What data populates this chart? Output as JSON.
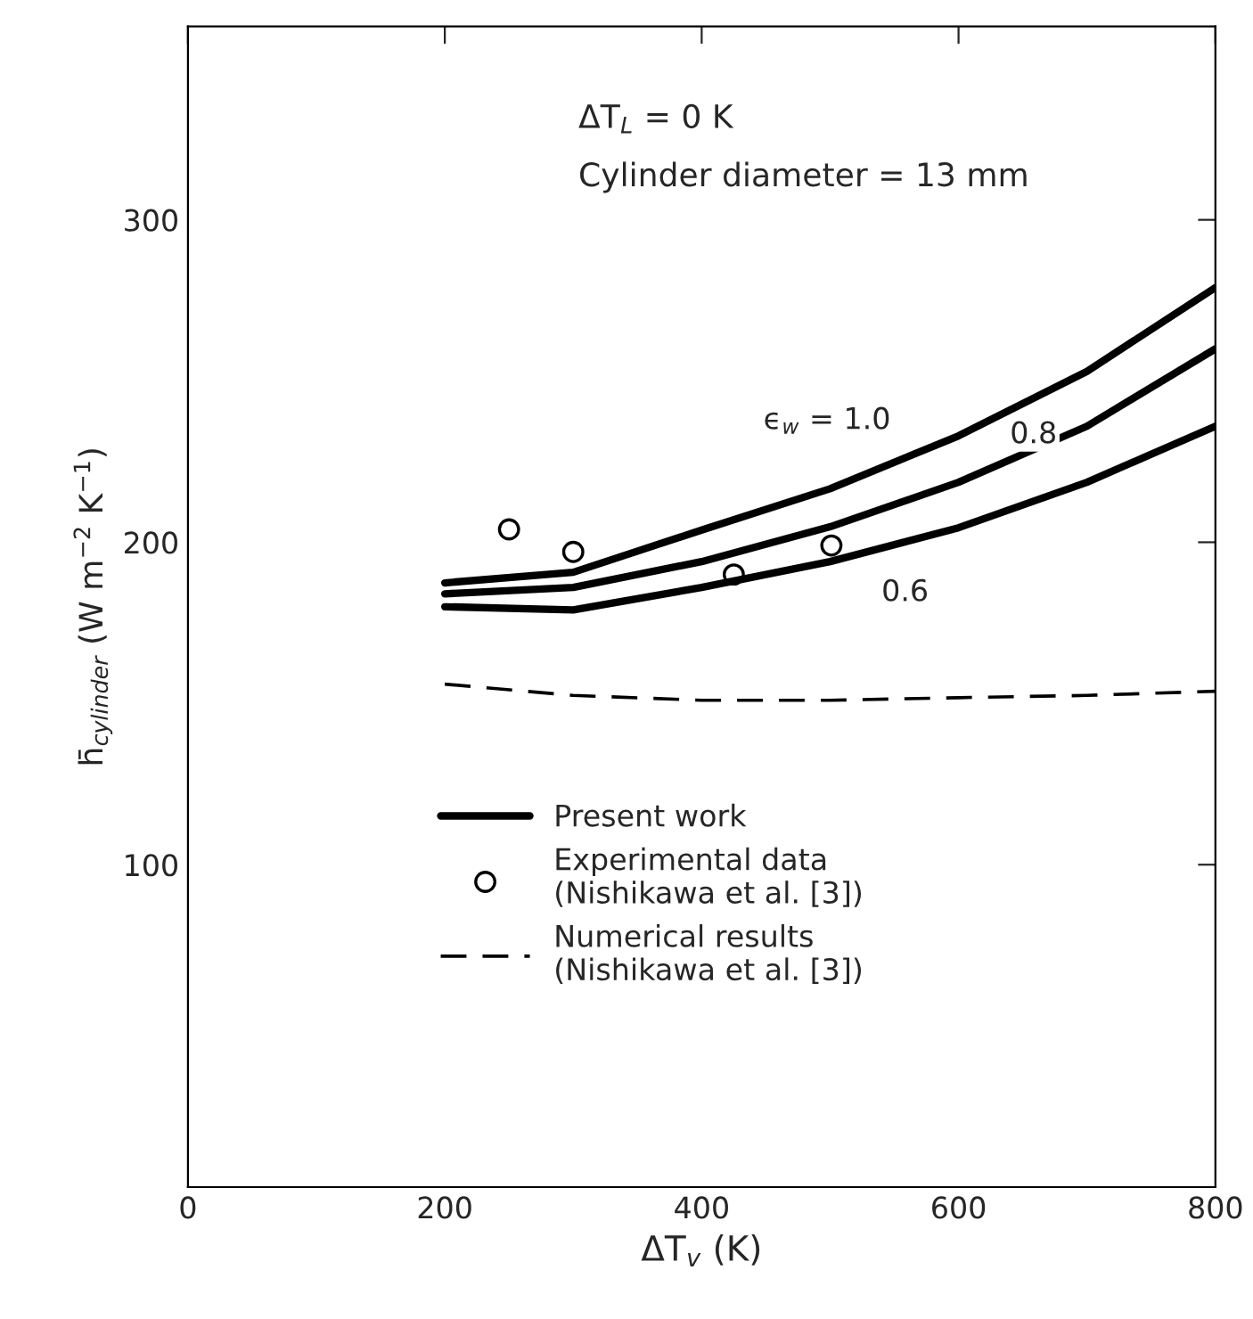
{
  "chart_data": {
    "type": "line",
    "xlabel": "ΔT$_{v}$ (K)",
    "ylabel": "h̄$_{cylinder}$ (W m$^{−2}$ K$^{−1}$)",
    "x": [
      200,
      300,
      400,
      500,
      600,
      700,
      800
    ],
    "series": [
      {
        "name": "Present work",
        "color": "#000000",
        "values": [
          187.4,
          190.7,
          203.8,
          216.6,
          233,
          253,
          279
        ]
      },
      {
        "color": "#000000",
        "values": [
          184,
          186,
          194,
          204.8,
          218.6,
          236,
          260
        ]
      },
      {
        "color": "#000000",
        "values": [
          180,
          179,
          186,
          194,
          204.5,
          218.6,
          236
        ]
      },
      {
        "name": "Experimental data\n(Nishikawa et al. [3])",
        "type": "scatter",
        "marker": "circle",
        "color": "#000000",
        "x": [
          250,
          300,
          425,
          501
        ],
        "values": [
          204,
          197,
          190,
          199
        ]
      },
      {
        "name": "Numerical results\n(Nishikawa et al. [3])",
        "line_style": "dashed",
        "color": "#000000",
        "values": [
          156,
          152.5,
          151,
          151,
          151.8,
          152.5,
          153.8
        ]
      }
    ],
    "annotations": [
      "ΔT$_{L}$ = 0 K",
      "Cylinder diameter = 13 mm",
      "ϵ$_{w}$ = 1.0",
      "0.8",
      "0.6"
    ],
    "xlim": [
      0,
      800
    ],
    "ylim": [
      0,
      360
    ],
    "xticks": [
      {
        "value": 0,
        "label": "0"
      },
      200,
      400,
      600,
      800
    ],
    "yticks": [
      100,
      200,
      300
    ],
    "grid": false,
    "legend": "bottom left"
  }
}
